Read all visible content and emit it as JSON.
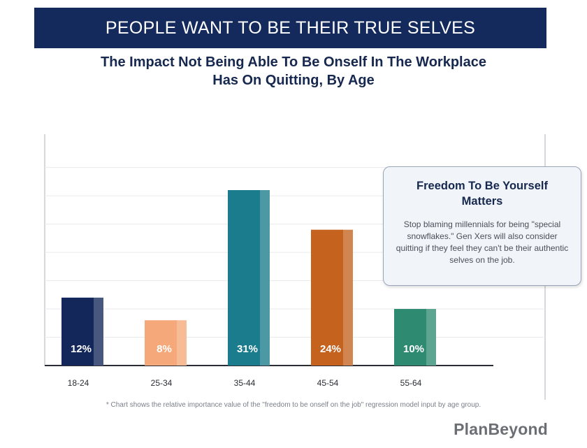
{
  "header": {
    "banner_title": "PEOPLE WANT TO BE THEIR TRUE SELVES",
    "subtitle_line1": "The Impact Not Being Able To Be Onself In The Workplace",
    "subtitle_line2": "Has On Quitting, By Age"
  },
  "chart_data": {
    "type": "bar",
    "categories": [
      "18-24",
      "25-34",
      "35-44",
      "45-54",
      "55-64"
    ],
    "values": [
      12,
      8,
      31,
      24,
      10
    ],
    "value_labels": [
      "12%",
      "8%",
      "31%",
      "24%",
      "10%"
    ],
    "colors": [
      "#13275a",
      "#f5a879",
      "#1a7c8c",
      "#c4621e",
      "#2f8a72"
    ],
    "ylim": [
      0,
      40
    ],
    "grid": true,
    "title": "",
    "xlabel": "",
    "ylabel": ""
  },
  "callout": {
    "title": "Freedom To Be Yourself Matters",
    "body": "Stop blaming millennials for being \"special snowflakes.\" Gen Xers will also consider quitting if they feel they can't be their authentic selves on the job."
  },
  "footnote": "* Chart shows the relative importance value of the \"freedom to be onself on the job\" regression model input by age group.",
  "brand": "PlanBeyond"
}
